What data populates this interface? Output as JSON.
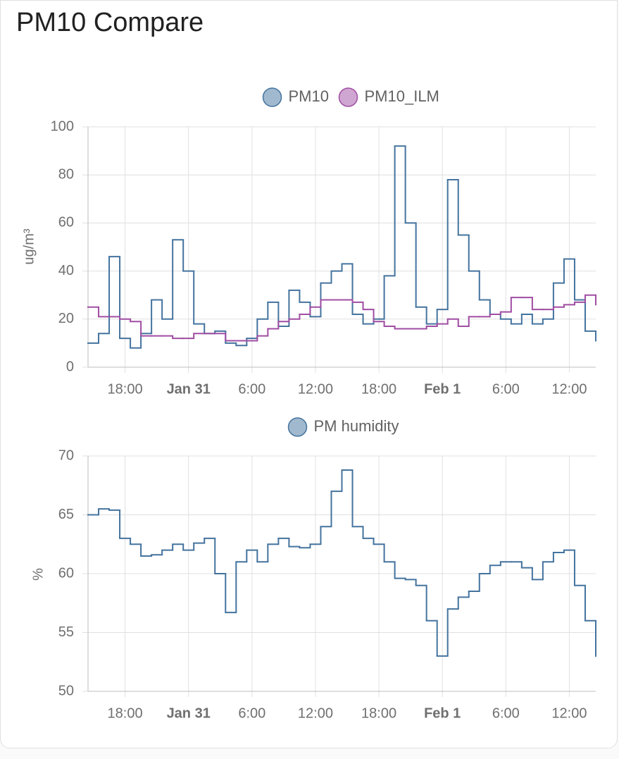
{
  "title": "PM10 Compare",
  "chart_data": [
    {
      "type": "line",
      "step": true,
      "y_label": "ug/m³",
      "legend": "top",
      "x": [
        -9.5,
        -8.5,
        -7.5,
        -6.5,
        -5.5,
        -4.5,
        -3.5,
        -2.5,
        -1.5,
        -0.5,
        0.5,
        1.5,
        2.5,
        3.5,
        4.5,
        5.5,
        6.5,
        7.5,
        8.5,
        9.5,
        10.5,
        11.5,
        12.5,
        13.5,
        14.5,
        15.5,
        16.5,
        17.5,
        18.5,
        19.5,
        20.5,
        21.5,
        22.5,
        23.5,
        24.5,
        25.5,
        26.5,
        27.5,
        28.5,
        29.5,
        30.5,
        31.5,
        32.5,
        33.5,
        34.5,
        35.5,
        36.5,
        37.5,
        38.5
      ],
      "xlim": [
        -9.5,
        38.5
      ],
      "xticks": [
        {
          "value": -6,
          "label": "18:00"
        },
        {
          "value": 0,
          "label": "Jan 31"
        },
        {
          "value": 6,
          "label": "6:00"
        },
        {
          "value": 12,
          "label": "12:00"
        },
        {
          "value": 18,
          "label": "18:00"
        },
        {
          "value": 24,
          "label": "Feb 1"
        },
        {
          "value": 30,
          "label": "6:00"
        },
        {
          "value": 36,
          "label": "12:00"
        }
      ],
      "ylim": [
        0,
        100
      ],
      "yticks": [
        0,
        20,
        40,
        60,
        80,
        100
      ],
      "grid": true,
      "series": [
        {
          "name": "PM10",
          "color": "#44739e",
          "values": [
            10,
            14,
            46,
            12,
            8,
            14,
            28,
            20,
            53,
            40,
            18,
            14,
            15,
            10,
            9,
            12,
            20,
            27,
            17,
            32,
            27,
            21,
            35,
            40,
            43,
            22,
            18,
            20,
            38,
            92,
            60,
            25,
            18,
            24,
            78,
            55,
            40,
            28,
            22,
            20,
            18,
            22,
            18,
            20,
            35,
            45,
            28,
            15,
            11
          ]
        },
        {
          "name": "PM10_ILM",
          "color": "#a04da3",
          "values": [
            25,
            21,
            21,
            20,
            19,
            13,
            13,
            13,
            12,
            12,
            14,
            14,
            14,
            11,
            11,
            11,
            13,
            16,
            19,
            20,
            22,
            25,
            28,
            28,
            28,
            27,
            24,
            19,
            17,
            16,
            16,
            16,
            17,
            18,
            20,
            17,
            21,
            21,
            22,
            23,
            29,
            29,
            24,
            24,
            25,
            26,
            27,
            30,
            26
          ]
        }
      ]
    },
    {
      "type": "line",
      "step": true,
      "y_label": "%",
      "legend": "top",
      "x": [
        -9.5,
        -8.5,
        -7.5,
        -6.5,
        -5.5,
        -4.5,
        -3.5,
        -2.5,
        -1.5,
        -0.5,
        0.5,
        1.5,
        2.5,
        3.5,
        4.5,
        5.5,
        6.5,
        7.5,
        8.5,
        9.5,
        10.5,
        11.5,
        12.5,
        13.5,
        14.5,
        15.5,
        16.5,
        17.5,
        18.5,
        19.5,
        20.5,
        21.5,
        22.5,
        23.5,
        24.5,
        25.5,
        26.5,
        27.5,
        28.5,
        29.5,
        30.5,
        31.5,
        32.5,
        33.5,
        34.5,
        35.5,
        36.5,
        37.5,
        38.5
      ],
      "xlim": [
        -9.5,
        38.5
      ],
      "xticks": [
        {
          "value": -6,
          "label": "18:00"
        },
        {
          "value": 0,
          "label": "Jan 31"
        },
        {
          "value": 6,
          "label": "6:00"
        },
        {
          "value": 12,
          "label": "12:00"
        },
        {
          "value": 18,
          "label": "18:00"
        },
        {
          "value": 24,
          "label": "Feb 1"
        },
        {
          "value": 30,
          "label": "6:00"
        },
        {
          "value": 36,
          "label": "12:00"
        }
      ],
      "ylim": [
        50,
        70
      ],
      "yticks": [
        50,
        55,
        60,
        65,
        70
      ],
      "grid": true,
      "series": [
        {
          "name": "PM humidity",
          "color": "#44739e",
          "values": [
            65,
            65.5,
            65.4,
            63,
            62.5,
            61.5,
            61.6,
            62,
            62.5,
            62,
            62.6,
            63,
            60,
            56.7,
            61,
            62,
            61,
            62.5,
            63,
            62.3,
            62.2,
            62.5,
            64,
            67,
            68.8,
            64,
            63,
            62.5,
            61,
            59.6,
            59.5,
            59,
            56,
            53,
            57,
            58,
            58.5,
            60,
            60.7,
            61,
            61,
            60.5,
            59.5,
            61,
            61.8,
            62,
            59,
            56,
            53
          ]
        }
      ]
    }
  ]
}
